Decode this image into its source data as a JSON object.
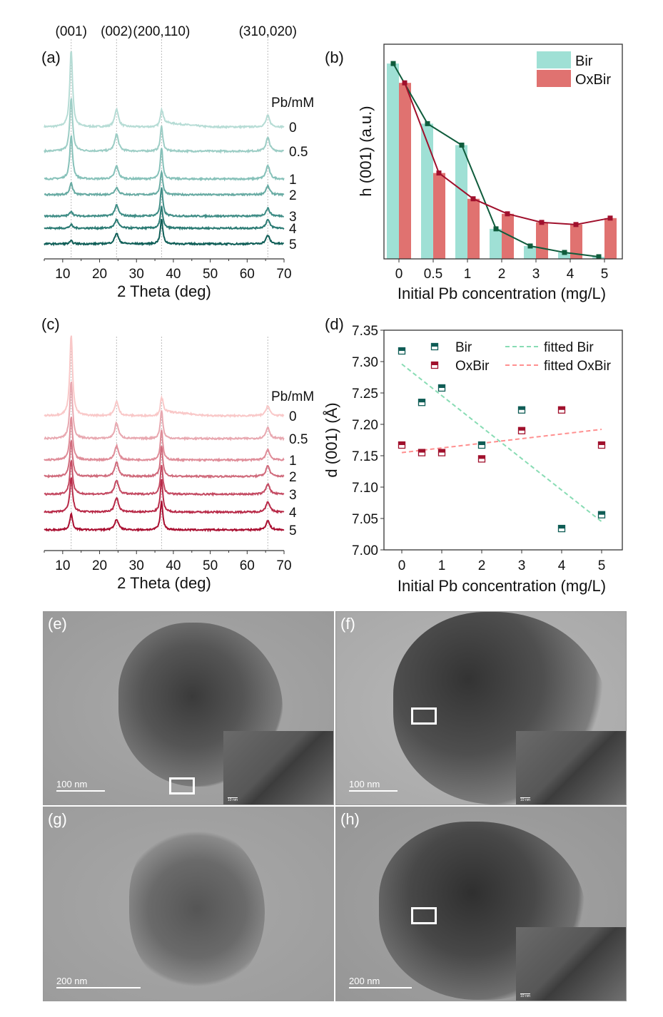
{
  "chart_data": [
    {
      "panel": "(a)",
      "type": "line",
      "xlabel": "2 Theta (deg)",
      "xlim": [
        5,
        70
      ],
      "xticks": [
        10,
        20,
        30,
        40,
        50,
        60,
        70
      ],
      "peak_positions": [
        12.3,
        24.6,
        36.8,
        65.6
      ],
      "peak_labels": [
        "(001)",
        "(002)",
        "(200,110)",
        "(310,020)"
      ],
      "legend_title": "Pb/mM",
      "ylim": [
        0,
        300
      ],
      "series": [
        {
          "name": "0",
          "offset": 185,
          "peak_heights": [
            108,
            25,
            25,
            16
          ],
          "color": "#b6dcd5"
        },
        {
          "name": "0.5",
          "offset": 151,
          "peak_heights": [
            75,
            24,
            35,
            19
          ],
          "color": "#9ccdc5"
        },
        {
          "name": "1",
          "offset": 112,
          "peak_heights": [
            61,
            18,
            44,
            19
          ],
          "color": "#86c1b9"
        },
        {
          "name": "2",
          "offset": 90,
          "peak_heights": [
            17,
            10,
            33,
            12
          ],
          "color": "#68aba3"
        },
        {
          "name": "3",
          "offset": 60,
          "peak_heights": [
            7,
            15,
            40,
            11
          ],
          "color": "#3f8d86"
        },
        {
          "name": "4",
          "offset": 43,
          "peak_heights": [
            5,
            12,
            30,
            12
          ],
          "color": "#2a7a73"
        },
        {
          "name": "5",
          "offset": 21,
          "peak_heights": [
            4,
            15,
            35,
            12
          ],
          "color": "#0f5e57"
        }
      ]
    },
    {
      "panel": "(b)",
      "type": "bar",
      "xlabel": "Initial Pb concentration (mg/L)",
      "ylabel": "h (001) (a.u.)",
      "categories": [
        "0",
        "0.5",
        "1",
        "2",
        "3",
        "4",
        "5"
      ],
      "ylim": [
        0,
        1
      ],
      "legend": "top-right",
      "series": [
        {
          "name": "Bir",
          "values": [
            0.91,
            0.63,
            0.53,
            0.14,
            0.06,
            0.03,
            0.01
          ],
          "bar_color": "#9fe0d5",
          "line_color": "#0f5c3c"
        },
        {
          "name": "OxBir",
          "values": [
            0.82,
            0.4,
            0.28,
            0.21,
            0.17,
            0.16,
            0.19
          ],
          "bar_color": "#e07270",
          "line_color": "#a0102c"
        }
      ]
    },
    {
      "panel": "(c)",
      "type": "line",
      "xlabel": "2 Theta (deg)",
      "xlim": [
        5,
        70
      ],
      "xticks": [
        10,
        20,
        30,
        40,
        50,
        60,
        70
      ],
      "peak_positions": [
        12.3,
        24.6,
        36.8,
        65.6
      ],
      "legend_title": "Pb/mM",
      "ylim": [
        0,
        310
      ],
      "series": [
        {
          "name": "0",
          "offset": 189,
          "peak_heights": [
            113,
            20,
            25,
            14
          ],
          "color": "#f9c8c8"
        },
        {
          "name": "0.5",
          "offset": 157,
          "peak_heights": [
            80,
            22,
            40,
            16
          ],
          "color": "#e8a8b0"
        },
        {
          "name": "1",
          "offset": 127,
          "peak_heights": [
            60,
            20,
            42,
            15
          ],
          "color": "#df8c98"
        },
        {
          "name": "2",
          "offset": 104,
          "peak_heights": [
            50,
            20,
            42,
            15
          ],
          "color": "#d06b7c"
        },
        {
          "name": "3",
          "offset": 79,
          "peak_heights": [
            48,
            20,
            42,
            15
          ],
          "color": "#c44a62"
        },
        {
          "name": "4",
          "offset": 54,
          "peak_heights": [
            48,
            20,
            45,
            15
          ],
          "color": "#b82a48"
        },
        {
          "name": "5",
          "offset": 29,
          "peak_heights": [
            22,
            15,
            40,
            13
          ],
          "color": "#a90e30"
        }
      ]
    },
    {
      "panel": "(d)",
      "type": "scatter",
      "xlabel": "Initial Pb concentration (mg/L)",
      "ylabel": "d (001) (Å)",
      "xlim": [
        -0.5,
        5.5
      ],
      "ylim": [
        7.0,
        7.35
      ],
      "xticks": [
        0,
        1,
        2,
        3,
        4,
        5
      ],
      "yticks": [
        "7.00",
        "7.05",
        "7.10",
        "7.15",
        "7.20",
        "7.25",
        "7.30",
        "7.35"
      ],
      "legend": "top",
      "series": [
        {
          "name": "Bir",
          "x": [
            0,
            0.5,
            1,
            2,
            3,
            4,
            5
          ],
          "y": [
            7.317,
            7.235,
            7.258,
            7.167,
            7.223,
            7.034,
            7.056
          ],
          "color": "#0f5c55"
        },
        {
          "name": "OxBir",
          "x": [
            0,
            0.5,
            1,
            2,
            3,
            4,
            5
          ],
          "y": [
            7.167,
            7.155,
            7.155,
            7.145,
            7.19,
            7.223,
            7.167
          ],
          "color": "#a0102c"
        }
      ],
      "fits": [
        {
          "name": "fitted Bir",
          "x": [
            0,
            5
          ],
          "y": [
            7.296,
            7.045
          ],
          "color": "#88dcb4"
        },
        {
          "name": "fitted OxBir",
          "x": [
            0,
            5
          ],
          "y": [
            7.155,
            7.192
          ],
          "color": "#ff9090"
        }
      ]
    }
  ],
  "tem": [
    {
      "label": "(e)",
      "scale_bar": "100 nm",
      "inset_scale": "10 nm"
    },
    {
      "label": "(f)",
      "scale_bar": "100 nm",
      "inset_scale": "10 nm"
    },
    {
      "label": "(g)",
      "scale_bar": "200 nm"
    },
    {
      "label": "(h)",
      "scale_bar": "200 nm",
      "inset_scale": "10 nm"
    }
  ]
}
